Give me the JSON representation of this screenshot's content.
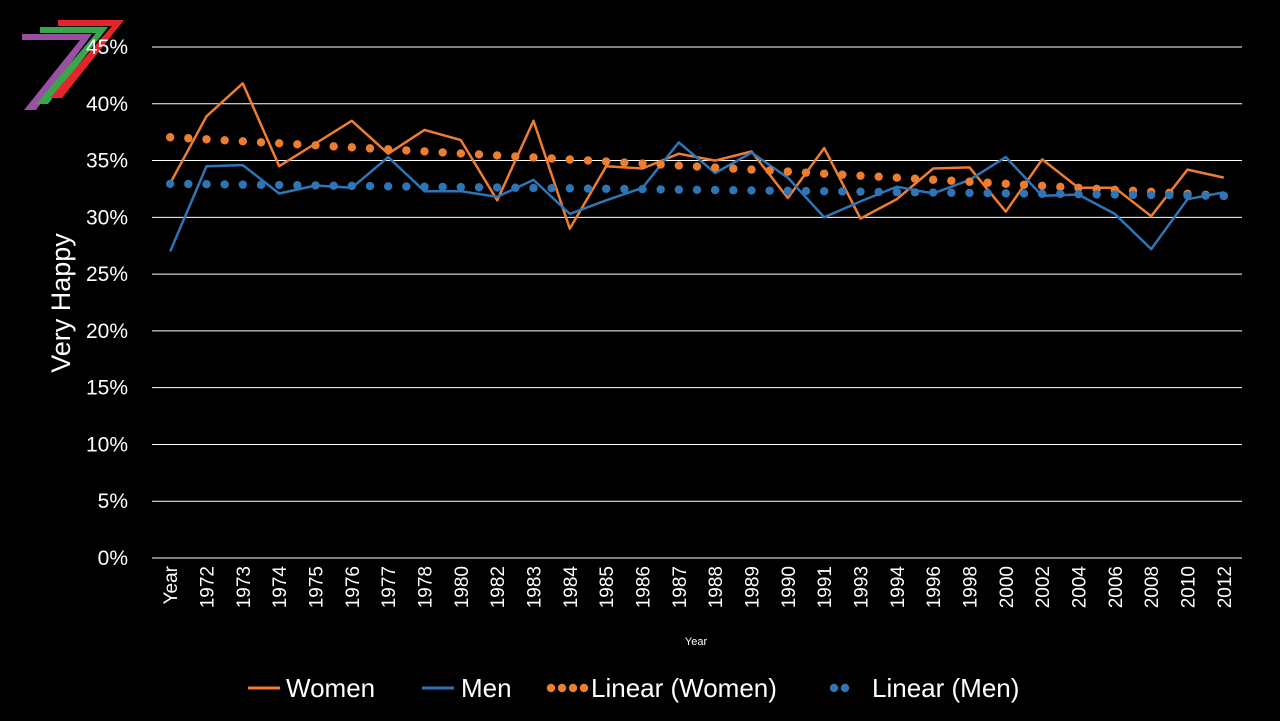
{
  "chart_data": {
    "type": "line",
    "xlabel": "Year",
    "ylabel": "Very Happy",
    "ylim": [
      0,
      45
    ],
    "y_tick_step": 5,
    "y_tick_format": "percent",
    "grid": true,
    "legend_position": "bottom",
    "categories": [
      "Year",
      "1972",
      "1973",
      "1974",
      "1975",
      "1976",
      "1977",
      "1978",
      "1980",
      "1982",
      "1983",
      "1984",
      "1985",
      "1986",
      "1987",
      "1988",
      "1989",
      "1990",
      "1991",
      "1993",
      "1994",
      "1996",
      "1998",
      "2000",
      "2002",
      "2004",
      "2006",
      "2008",
      "2010",
      "2012"
    ],
    "series": [
      {
        "name": "Women",
        "color": "#ED7D31",
        "style": "solid",
        "values": [
          33.0,
          38.9,
          41.8,
          34.5,
          36.5,
          38.5,
          35.6,
          37.7,
          36.8,
          31.5,
          38.5,
          29.0,
          34.5,
          34.3,
          35.6,
          35.0,
          35.8,
          31.7,
          36.1,
          29.9,
          31.6,
          34.3,
          34.4,
          30.5,
          35.1,
          32.6,
          32.6,
          30.1,
          34.2,
          33.5
        ]
      },
      {
        "name": "Men",
        "color": "#2E75B6",
        "style": "solid",
        "values": [
          27.0,
          34.5,
          34.6,
          32.1,
          32.8,
          32.6,
          35.3,
          32.3,
          32.3,
          31.8,
          33.3,
          30.3,
          31.5,
          32.6,
          36.6,
          33.9,
          35.7,
          33.5,
          30.0,
          31.4,
          32.7,
          32.1,
          33.3,
          35.3,
          31.9,
          32.0,
          30.3,
          27.2,
          31.6,
          32.2
        ]
      },
      {
        "name": "Linear (Women)",
        "color": "#ED7D31",
        "style": "dotted",
        "trend_of": "Women"
      },
      {
        "name": "Linear (Men)",
        "color": "#2E75B6",
        "style": "dotted",
        "trend_of": "Men"
      }
    ]
  },
  "logo": {
    "name": "seven-logo"
  }
}
